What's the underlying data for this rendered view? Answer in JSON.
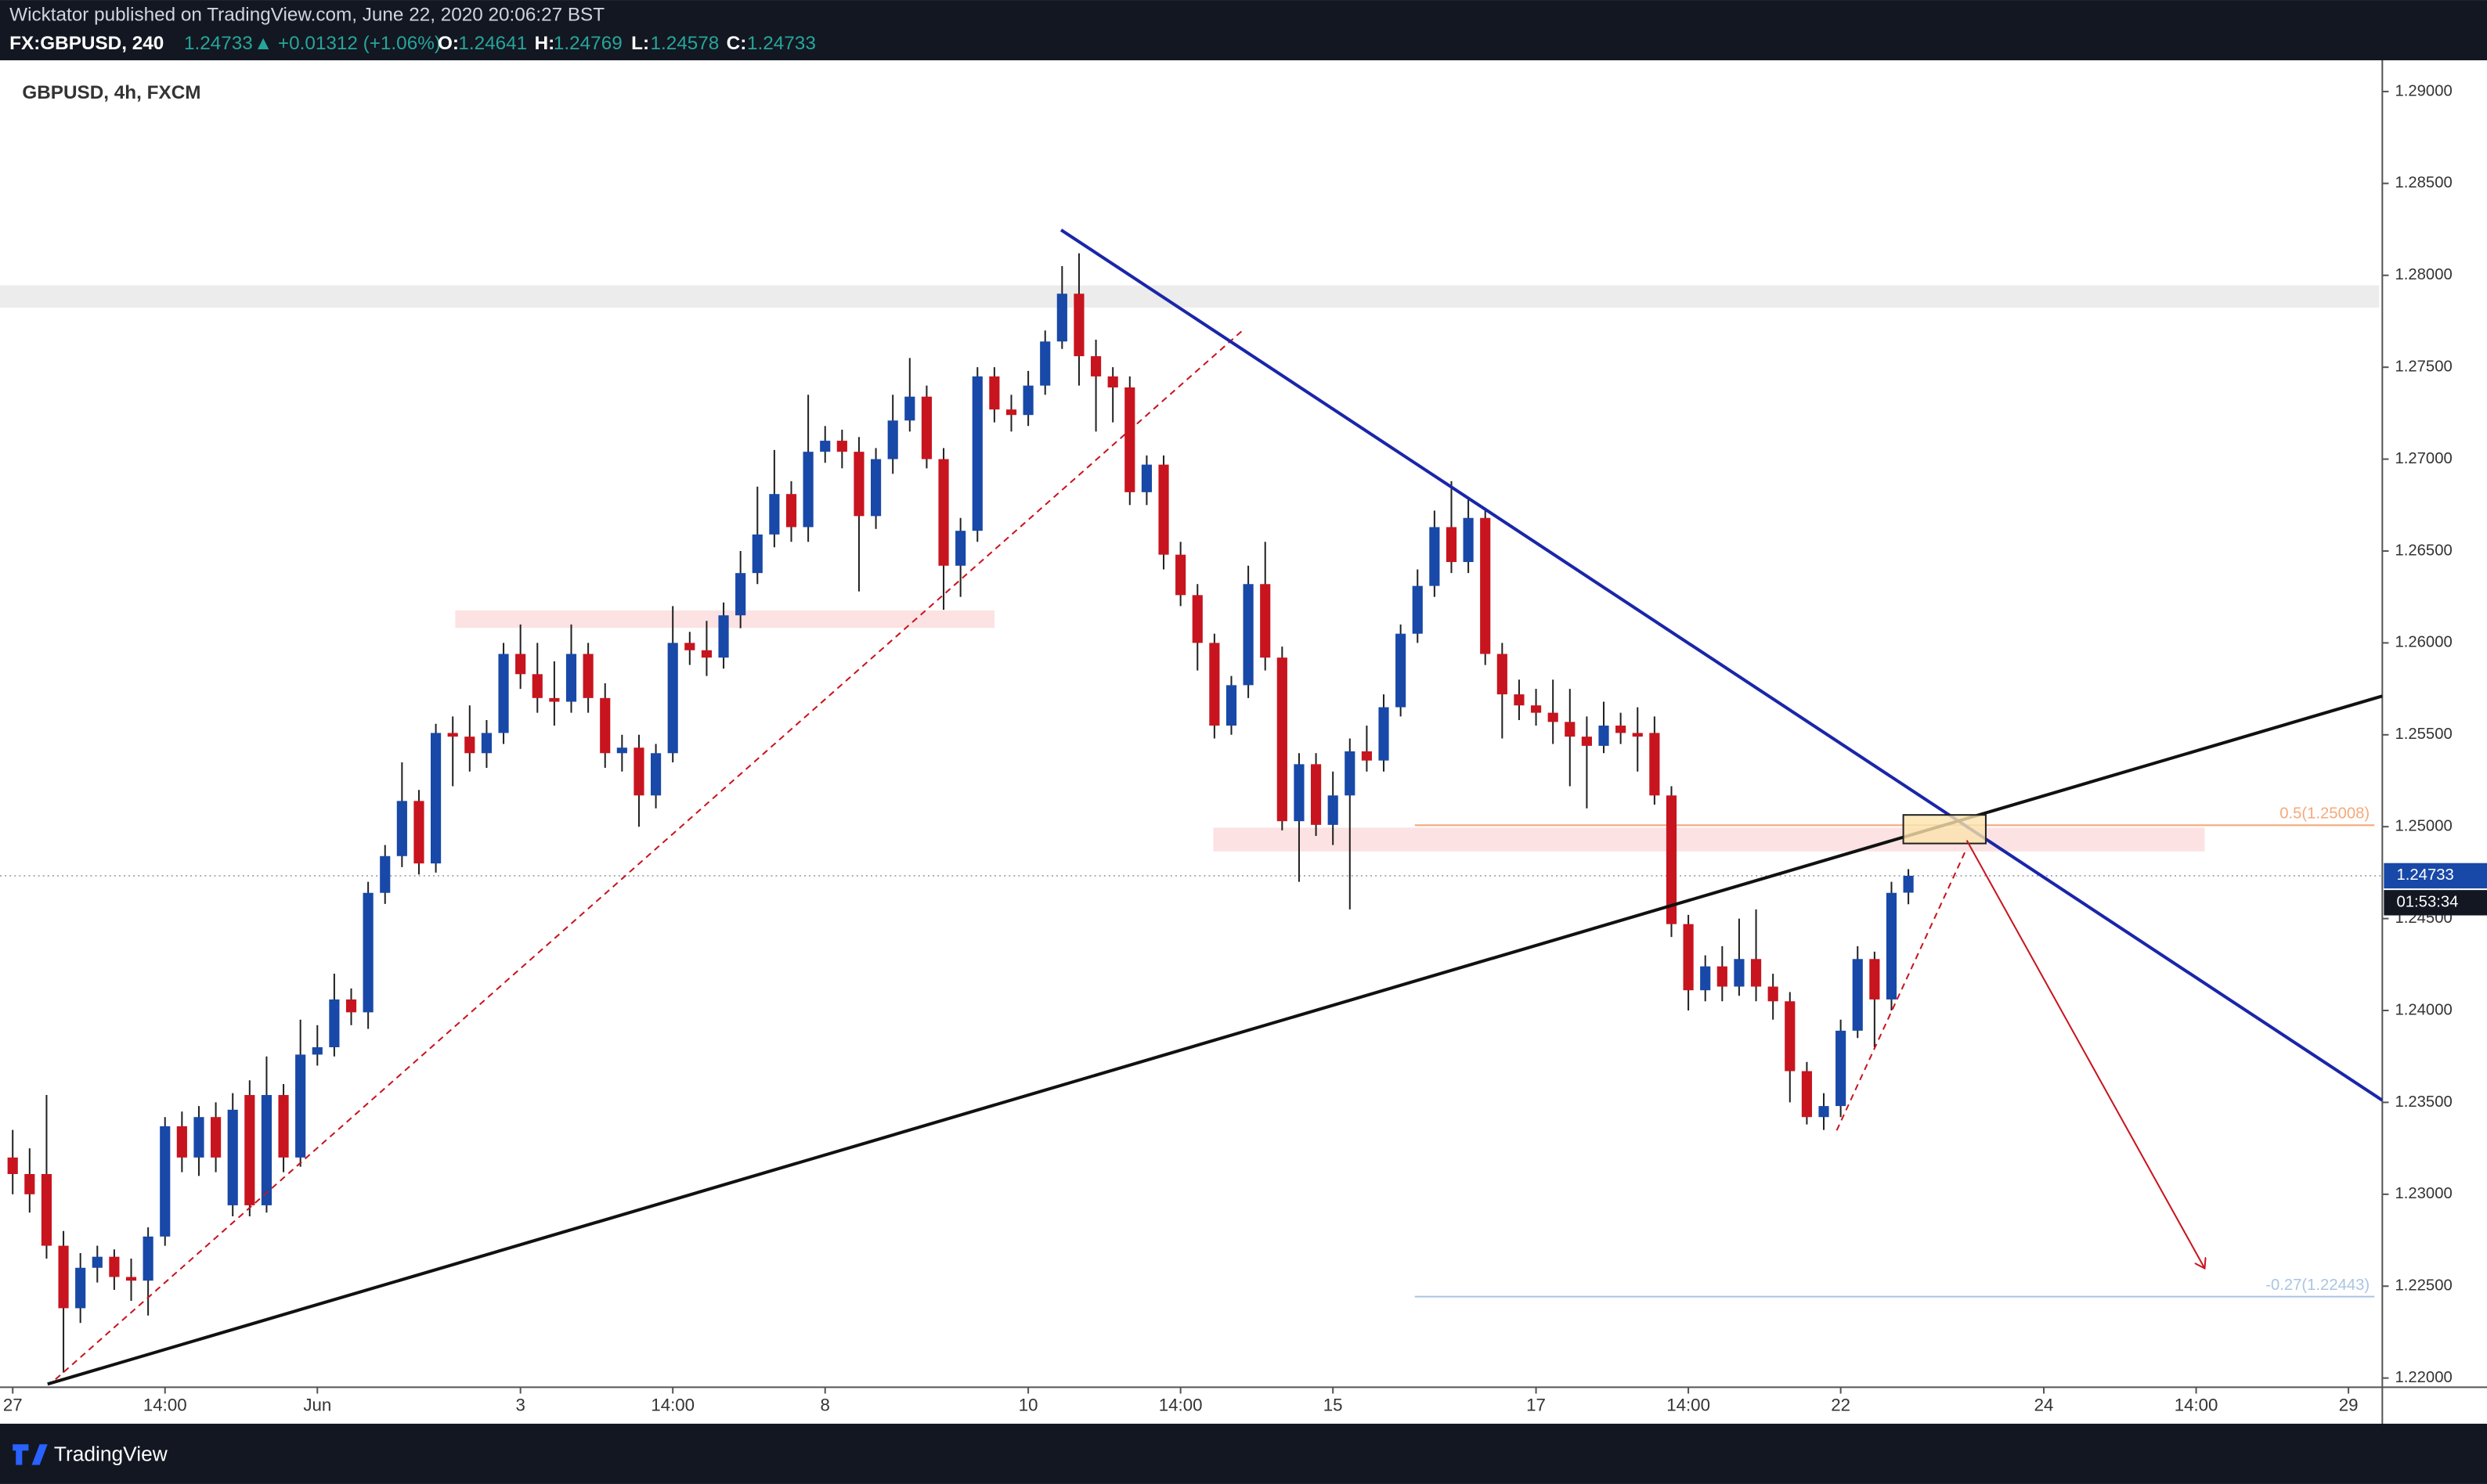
{
  "header": {
    "publisher": "Wicktator published on TradingView.com, June 22, 2020 20:06:27 BST",
    "symbol": "FX:GBPUSD, 240",
    "change": "▲ +0.01312 (+1.06%)",
    "o_label": "O:",
    "h_label": "H:",
    "l_label": "L:",
    "c_label": "C:"
  },
  "chart_data": {
    "type": "candlestick",
    "title": "GBPUSD, 4h, FXCM",
    "open": [
      1.232,
      1.2311,
      1.2311,
      1.2272,
      1.2238,
      1.226,
      1.2266,
      1.2255,
      1.2253,
      1.2277,
      1.2337,
      1.232,
      1.2342,
      1.2294,
      1.2354,
      1.2294,
      1.2354,
      1.232,
      1.2376,
      1.238,
      1.2406,
      1.2399,
      1.2464,
      1.2484,
      1.2514,
      1.248,
      1.2551,
      1.2549,
      1.254,
      1.2551,
      1.2594,
      1.2583,
      1.257,
      1.2568,
      1.2594,
      1.257,
      1.254,
      1.2543,
      1.2517,
      1.254,
      1.26,
      1.2596,
      1.2592,
      1.2615,
      1.2638,
      1.2659,
      1.2681,
      1.2663,
      1.2704,
      1.271,
      1.2704,
      1.2669,
      1.27,
      1.2721,
      1.2734,
      1.27,
      1.2642,
      1.2661,
      1.2745,
      1.2727,
      1.2724,
      1.274,
      1.2764,
      1.279,
      1.2756,
      1.2745,
      1.2739,
      1.2682,
      1.2697,
      1.2648,
      1.2626,
      1.26,
      1.2555,
      1.2577,
      1.2632,
      1.2592,
      1.2503,
      1.2534,
      1.2501,
      1.2517,
      1.2541,
      1.2536,
      1.2565,
      1.2605,
      1.2631,
      1.2663,
      1.2644,
      1.2668,
      1.2594,
      1.2572,
      1.2566,
      1.2562,
      1.2557,
      1.2549,
      1.2544,
      1.2555,
      1.2551,
      1.2551,
      1.2517,
      1.2447,
      1.2411,
      1.2424,
      1.2413,
      1.2428,
      1.2413,
      1.2405,
      1.2367,
      1.2342,
      1.2348,
      1.2389,
      1.2428,
      1.2406,
      1.24641
    ],
    "high": [
      1.2335,
      1.2325,
      1.2354,
      1.228,
      1.2268,
      1.2272,
      1.227,
      1.2265,
      1.2282,
      1.2342,
      1.2345,
      1.2348,
      1.235,
      1.2355,
      1.2362,
      1.2375,
      1.236,
      1.2395,
      1.2392,
      1.242,
      1.2412,
      1.247,
      1.249,
      1.2535,
      1.252,
      1.2556,
      1.256,
      1.2566,
      1.2558,
      1.26,
      1.261,
      1.26,
      1.259,
      1.261,
      1.26,
      1.2578,
      1.255,
      1.255,
      1.2545,
      1.262,
      1.2606,
      1.2612,
      1.2622,
      1.265,
      1.2685,
      1.2705,
      1.2688,
      1.2735,
      1.2718,
      1.2716,
      1.2712,
      1.2706,
      1.2735,
      1.2755,
      1.274,
      1.2706,
      1.2668,
      1.275,
      1.275,
      1.2735,
      1.2748,
      1.277,
      1.2805,
      1.2812,
      1.2765,
      1.275,
      1.2745,
      1.2702,
      1.2702,
      1.2655,
      1.2632,
      1.2605,
      1.2582,
      1.2642,
      1.2655,
      1.2598,
      1.254,
      1.254,
      1.253,
      1.2548,
      1.2555,
      1.2572,
      1.261,
      1.264,
      1.2672,
      1.2688,
      1.2678,
      1.2672,
      1.26,
      1.258,
      1.2575,
      1.258,
      1.2575,
      1.256,
      1.2568,
      1.2562,
      1.2565,
      1.256,
      1.2522,
      1.2452,
      1.243,
      1.2435,
      1.245,
      1.2455,
      1.242,
      1.241,
      1.2372,
      1.2355,
      1.2395,
      1.2435,
      1.2432,
      1.247,
      1.24769
    ],
    "low": [
      1.23,
      1.229,
      1.2265,
      1.2203,
      1.223,
      1.2252,
      1.2248,
      1.2242,
      1.2234,
      1.2272,
      1.2312,
      1.231,
      1.2312,
      1.2288,
      1.2288,
      1.229,
      1.2312,
      1.2315,
      1.237,
      1.2375,
      1.2392,
      1.239,
      1.2458,
      1.2478,
      1.2474,
      1.2475,
      1.2522,
      1.253,
      1.2532,
      1.2545,
      1.2575,
      1.2562,
      1.2555,
      1.2562,
      1.2562,
      1.2532,
      1.253,
      1.25,
      1.251,
      1.2535,
      1.2588,
      1.2582,
      1.2586,
      1.2608,
      1.2632,
      1.2652,
      1.2655,
      1.2655,
      1.2698,
      1.2695,
      1.2628,
      1.2662,
      1.2692,
      1.2715,
      1.2695,
      1.2618,
      1.2625,
      1.2655,
      1.272,
      1.2715,
      1.2718,
      1.2735,
      1.276,
      1.274,
      1.2715,
      1.272,
      1.2675,
      1.2675,
      1.264,
      1.262,
      1.2585,
      1.2548,
      1.255,
      1.257,
      1.2585,
      1.2498,
      1.247,
      1.2495,
      1.249,
      1.2455,
      1.253,
      1.253,
      1.256,
      1.26,
      1.2625,
      1.2638,
      1.2638,
      1.2588,
      1.2548,
      1.2558,
      1.2555,
      1.2545,
      1.2522,
      1.251,
      1.254,
      1.2545,
      1.253,
      1.2512,
      1.244,
      1.24,
      1.2405,
      1.2405,
      1.2408,
      1.2405,
      1.2395,
      1.235,
      1.2338,
      1.2335,
      1.2342,
      1.2385,
      1.238,
      1.24,
      1.24578
    ],
    "close": [
      1.2311,
      1.23,
      1.2272,
      1.2238,
      1.226,
      1.2266,
      1.2255,
      1.2253,
      1.2277,
      1.2337,
      1.232,
      1.2342,
      1.232,
      1.2346,
      1.2294,
      1.2354,
      1.232,
      1.2376,
      1.238,
      1.2406,
      1.2399,
      1.2464,
      1.2484,
      1.2514,
      1.248,
      1.2551,
      1.2549,
      1.254,
      1.2551,
      1.2594,
      1.2583,
      1.257,
      1.2568,
      1.2594,
      1.257,
      1.254,
      1.2543,
      1.2517,
      1.254,
      1.26,
      1.2596,
      1.2592,
      1.2615,
      1.2638,
      1.2659,
      1.2681,
      1.2663,
      1.2704,
      1.271,
      1.2704,
      1.2669,
      1.27,
      1.2721,
      1.2734,
      1.27,
      1.2642,
      1.2661,
      1.2745,
      1.2727,
      1.2724,
      1.274,
      1.2764,
      1.279,
      1.2756,
      1.2745,
      1.2739,
      1.2682,
      1.2697,
      1.2648,
      1.2626,
      1.26,
      1.2555,
      1.2577,
      1.2632,
      1.2592,
      1.2503,
      1.2534,
      1.2501,
      1.2517,
      1.2541,
      1.2536,
      1.2565,
      1.2605,
      1.2631,
      1.2663,
      1.2644,
      1.2668,
      1.2594,
      1.2572,
      1.2566,
      1.2562,
      1.2557,
      1.2549,
      1.2544,
      1.2555,
      1.2551,
      1.2549,
      1.2517,
      1.2447,
      1.2411,
      1.2424,
      1.2413,
      1.2428,
      1.2413,
      1.2405,
      1.2367,
      1.2342,
      1.2348,
      1.2389,
      1.2428,
      1.2406,
      1.2464,
      1.24733
    ],
    "up_color": "#1848a8",
    "down_color": "#c8141e",
    "xlim": [
      -0.75,
      140
    ],
    "xticks": [
      {
        "value": 0,
        "label": "27"
      },
      {
        "value": 9,
        "label": "14:00"
      },
      {
        "value": 18,
        "label": "Jun"
      },
      {
        "value": 30,
        "label": "3"
      },
      {
        "value": 39,
        "label": "14:00"
      },
      {
        "value": 48,
        "label": "8"
      },
      {
        "value": 60,
        "label": "10"
      },
      {
        "value": 69,
        "label": "14:00"
      },
      {
        "value": 78,
        "label": "15"
      },
      {
        "value": 90,
        "label": "17"
      },
      {
        "value": 99,
        "label": "14:00"
      },
      {
        "value": 108,
        "label": "22"
      },
      {
        "value": 120,
        "label": "24"
      },
      {
        "value": 129,
        "label": "14:00"
      },
      {
        "value": 138,
        "label": "29"
      }
    ],
    "ylim": [
      1.2195,
      1.2917
    ],
    "yticks": [
      {
        "value": 1.22,
        "label": "1.22000"
      },
      {
        "value": 1.225,
        "label": "1.22500"
      },
      {
        "value": 1.23,
        "label": "1.23000"
      },
      {
        "value": 1.235,
        "label": "1.23500"
      },
      {
        "value": 1.24,
        "label": "1.24000"
      },
      {
        "value": 1.245,
        "label": "1.24500"
      },
      {
        "value": 1.25,
        "label": "1.25000"
      },
      {
        "value": 1.255,
        "label": "1.25500"
      },
      {
        "value": 1.26,
        "label": "1.26000"
      },
      {
        "value": 1.265,
        "label": "1.26500"
      },
      {
        "value": 1.27,
        "label": "1.27000"
      },
      {
        "value": 1.275,
        "label": "1.27500"
      },
      {
        "value": 1.28,
        "label": "1.28000"
      },
      {
        "value": 1.285,
        "label": "1.28500"
      },
      {
        "value": 1.29,
        "label": "1.29000"
      }
    ],
    "countdown": "01:53:34",
    "fib_levels": [
      {
        "value": 1.25008,
        "label": "0.5(1.25008)",
        "color": "#f5a97a"
      },
      {
        "value": 1.22443,
        "label": "-0.27(1.22443)",
        "color": "#a9c5e2"
      }
    ]
  },
  "footer": {
    "brand": "TradingView"
  }
}
